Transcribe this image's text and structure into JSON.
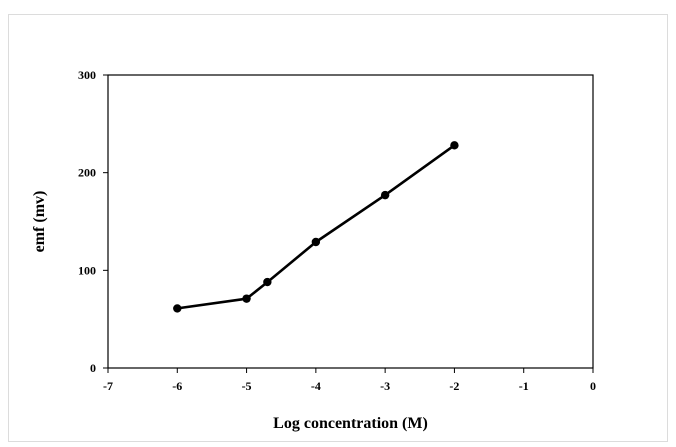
{
  "chart_data": {
    "type": "line",
    "title": "",
    "xlabel": "Log concentration (M)",
    "ylabel": "emf (mv)",
    "xlim": [
      -7,
      0
    ],
    "ylim": [
      0,
      300
    ],
    "xticks": [
      -7,
      -6,
      -5,
      -4,
      -3,
      -2,
      -1,
      0
    ],
    "yticks": [
      0,
      100,
      200,
      300
    ],
    "grid": false,
    "legend": "none",
    "series": [
      {
        "x": [
          -6,
          -5,
          -4.7,
          -4,
          -3,
          -2
        ],
        "y": [
          61,
          71,
          88,
          129,
          177,
          228
        ],
        "color": "#000000",
        "marker": "circle"
      }
    ]
  }
}
